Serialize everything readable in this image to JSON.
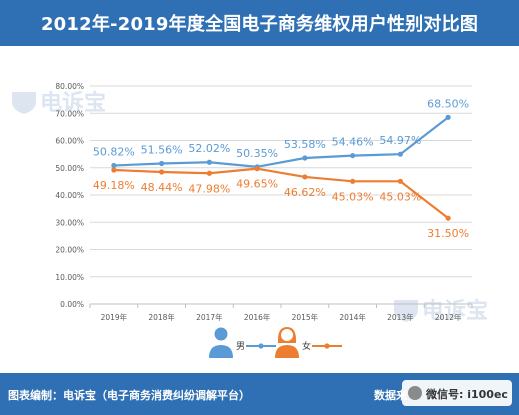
{
  "header": {
    "title": "2012年-2019年度全国电子商务维权用户性别对比图"
  },
  "watermarks": {
    "brand": "电诉宝"
  },
  "footer": {
    "credit": "图表编制：电诉宝（电子商务消费纠纷调解平台）",
    "source_label": "数据来",
    "wechat_label": "微信号: i100ec"
  },
  "colors": {
    "male": "#5b9bd5",
    "female": "#ed7d31",
    "header": "#2f6fb4",
    "grid": "#d9d9d9"
  },
  "icons": {
    "male": "male-user-icon",
    "female": "female-user-icon",
    "wechat": "wechat-icon"
  },
  "chart_data": {
    "type": "line",
    "categories": [
      "2019年",
      "2018年",
      "2017年",
      "2016年",
      "2015年",
      "2014年",
      "2013年",
      "2012年"
    ],
    "series": [
      {
        "name": "男",
        "values": [
          50.82,
          51.56,
          52.02,
          50.35,
          53.58,
          54.46,
          54.97,
          68.5
        ],
        "labels": [
          "50.82%",
          "51.56%",
          "52.02%",
          "50.35%",
          "53.58%",
          "54.46%",
          "54.97%",
          "68.50%"
        ]
      },
      {
        "name": "女",
        "values": [
          49.18,
          48.44,
          47.98,
          49.65,
          46.62,
          45.03,
          45.03,
          31.5
        ],
        "labels": [
          "49.18%",
          "48.44%",
          "47.98%",
          "49.65%",
          "46.62%",
          "45.03%",
          "45.03%",
          "31.50%"
        ]
      }
    ],
    "y_ticks": [
      "0.00%",
      "10.00%",
      "20.00%",
      "30.00%",
      "40.00%",
      "50.00%",
      "60.00%",
      "70.00%",
      "80.00%"
    ],
    "ylim": [
      0,
      80
    ],
    "grid": true,
    "legend_position": "bottom-center"
  }
}
